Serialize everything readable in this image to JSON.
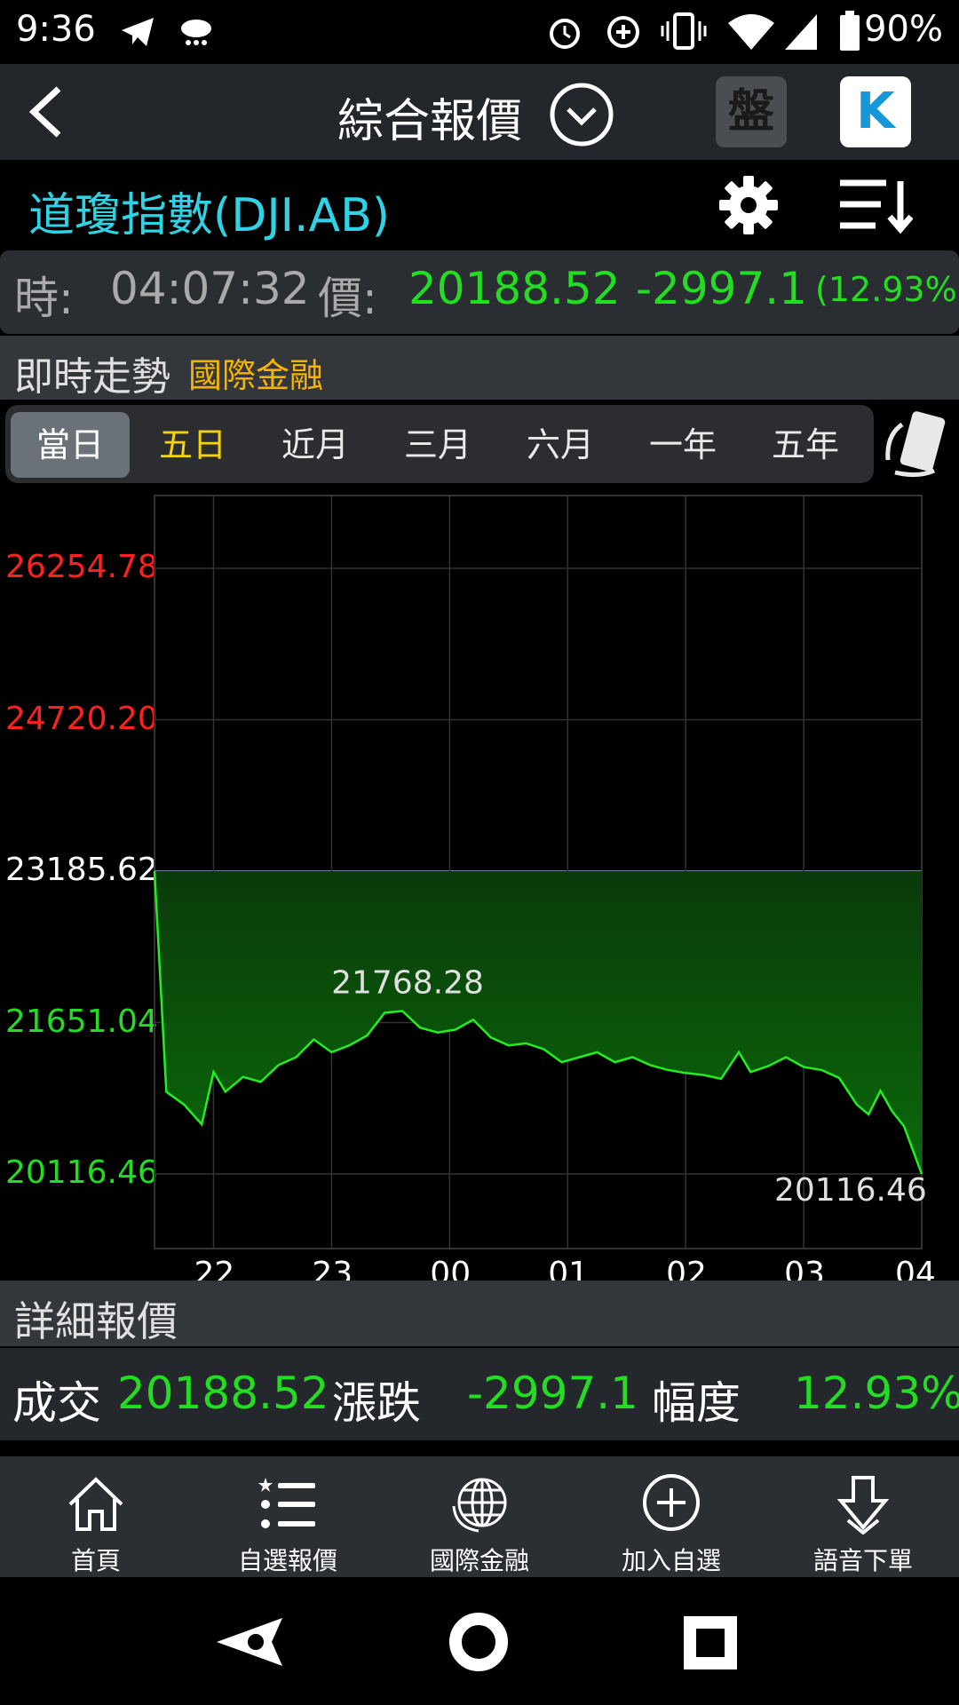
{
  "status_bar": {
    "time": "9:36",
    "battery": "90%"
  },
  "header": {
    "title": "綜合報價",
    "pan_label": "盤",
    "k_label": "K"
  },
  "stock": {
    "name": "道瓊指數(DJI.AB)"
  },
  "info": {
    "time_label": "時:",
    "time_value": "04:07:32",
    "price_label": "價:",
    "price_value": "20188.52",
    "change": "-2997.1",
    "change_pct": "(12.93%)"
  },
  "trend": {
    "label": "即時走勢",
    "sublabel": "國際金融"
  },
  "tabs": [
    {
      "label": "當日"
    },
    {
      "label": "五日"
    },
    {
      "label": "近月"
    },
    {
      "label": "三月"
    },
    {
      "label": "六月"
    },
    {
      "label": "一年"
    },
    {
      "label": "五年"
    }
  ],
  "chart_data": {
    "type": "area",
    "y_ticks": [
      "26254.78",
      "24720.20",
      "23185.62",
      "21651.04",
      "20116.46"
    ],
    "x_ticks": [
      "22",
      "23",
      "00",
      "01",
      "02",
      "03",
      "04"
    ],
    "reference": 23185.62,
    "ylim": [
      20116.46,
      26254.78
    ],
    "high_label": "21768.28",
    "low_label": "20116.46",
    "x": [
      21.5,
      21.6,
      21.75,
      21.9,
      22.0,
      22.1,
      22.25,
      22.4,
      22.55,
      22.7,
      22.85,
      23.0,
      23.15,
      23.3,
      23.45,
      23.6,
      23.75,
      23.9,
      24.05,
      24.2,
      24.35,
      24.5,
      24.65,
      24.8,
      24.95,
      25.1,
      25.25,
      25.4,
      25.55,
      25.7,
      25.85,
      26.0,
      26.15,
      26.3,
      26.45,
      26.55,
      26.7,
      26.85,
      27.0,
      27.15,
      27.3,
      27.45,
      27.55,
      27.65,
      27.75,
      27.85,
      28.0
    ],
    "y": [
      23185.62,
      20950,
      20820,
      20620,
      21150,
      20950,
      21100,
      21050,
      21220,
      21300,
      21480,
      21350,
      21420,
      21520,
      21750,
      21768.28,
      21600,
      21550,
      21580,
      21680,
      21500,
      21420,
      21440,
      21380,
      21250,
      21300,
      21350,
      21250,
      21300,
      21220,
      21170,
      21140,
      21120,
      21080,
      21350,
      21150,
      21210,
      21300,
      21200,
      21170,
      21090,
      20820,
      20720,
      20960,
      20750,
      20600,
      20116.46
    ]
  },
  "detail": {
    "label": "詳細報價",
    "volume_label": "成交",
    "volume_value": "20188.52",
    "change_label": "漲跌",
    "change_value": "-2997.1",
    "pct_label": "幅度",
    "pct_value": "12.93%"
  },
  "bottom_nav": [
    {
      "label": "首頁",
      "icon": "home-icon"
    },
    {
      "label": "自選報價",
      "icon": "star-list-icon"
    },
    {
      "label": "國際金融",
      "icon": "globe-icon"
    },
    {
      "label": "加入自選",
      "icon": "plus-circle-icon"
    },
    {
      "label": "語音下單",
      "icon": "download-arrow-icon"
    }
  ],
  "colors": {
    "up": "#ff2020",
    "down": "#22dd22",
    "accent": "#2fd3e6",
    "highlight": "#f5b400"
  }
}
